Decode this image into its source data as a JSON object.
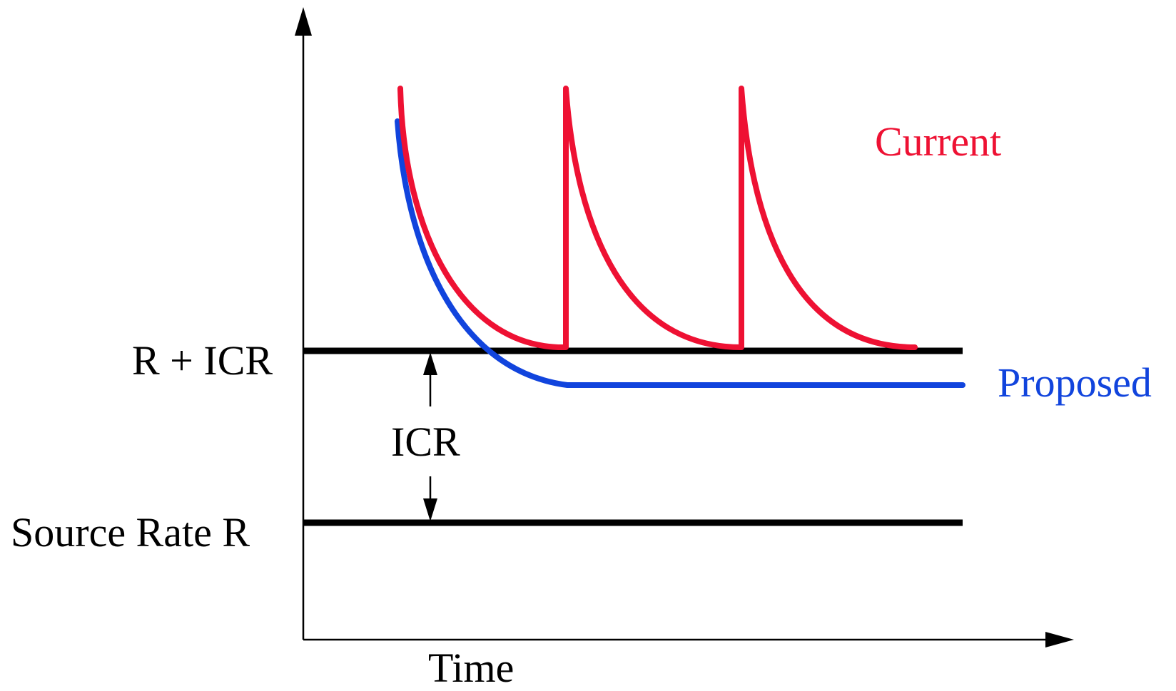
{
  "labels": {
    "r_plus_icr": "R + ICR",
    "source_rate": "Source Rate R",
    "icr": "ICR",
    "time_axis": "Time",
    "current": "Current",
    "proposed": "Proposed"
  },
  "colors": {
    "current": "#ee1133",
    "proposed": "#1144dd",
    "reference": "#000000"
  },
  "curves": {
    "current_resets": 3,
    "proposed_settles_below_r_plus_icr": true
  }
}
